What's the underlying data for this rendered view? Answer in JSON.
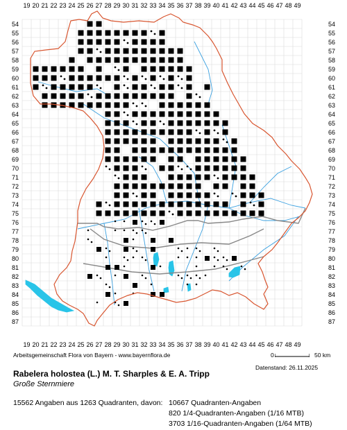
{
  "map": {
    "columns": [
      "19",
      "20",
      "21",
      "22",
      "23",
      "24",
      "25",
      "26",
      "27",
      "28",
      "29",
      "30",
      "31",
      "32",
      "33",
      "34",
      "35",
      "36",
      "37",
      "38",
      "39",
      "40",
      "41",
      "42",
      "43",
      "44",
      "45",
      "46",
      "47",
      "48",
      "49"
    ],
    "rows": [
      "54",
      "55",
      "56",
      "57",
      "58",
      "59",
      "60",
      "61",
      "62",
      "63",
      "64",
      "65",
      "66",
      "67",
      "68",
      "69",
      "70",
      "71",
      "72",
      "73",
      "74",
      "75",
      "76",
      "77",
      "78",
      "79",
      "80",
      "81",
      "82",
      "83",
      "84",
      "85",
      "86",
      "87"
    ],
    "colors": {
      "record": "#000000",
      "border": "#d8552f",
      "river": "#3aa0e0",
      "lake": "#29c4e8",
      "grid": "#d9d9d9",
      "inner_border": "#888888"
    }
  },
  "footer": {
    "credit": "Arbeitsgemeinschaft Flora von Bayern - www.bayernflora.de",
    "scale_zero": "0",
    "scale_end": "50 km",
    "date": "Datenstand: 26.11.2025"
  },
  "species": {
    "name": "Rabelera holostea (L.) M. T. Sharples & E. A. Tripp",
    "common": "Große Sternmiere"
  },
  "stats": {
    "total": "15562 Angaben aus 1263 Quadranten, davon:",
    "quadrant": "10667 Quadranten-Angaben",
    "quarter": "820 1/4-Quadranten-Angaben (1/16 MTB)",
    "sixteenth": "3703 1/16-Quadranten-Angaben (1/64 MTB)"
  }
}
